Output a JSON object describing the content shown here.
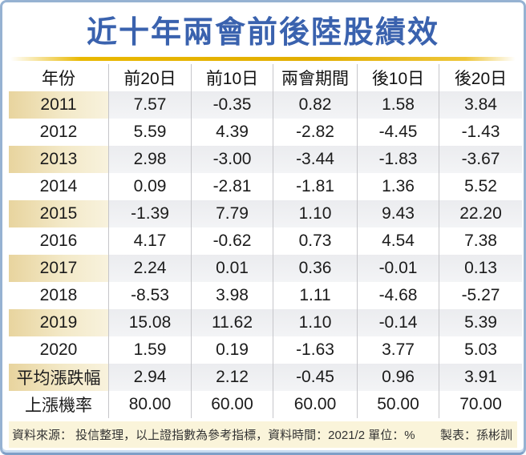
{
  "title": "近十年兩會前後陸股績效",
  "table": {
    "columns": [
      "年份",
      "前20日",
      "前10日",
      "兩會期間",
      "後10日",
      "後20日"
    ],
    "rows": [
      {
        "label": "2011",
        "values": [
          "7.57",
          "-0.35",
          "0.82",
          "1.58",
          "3.84"
        ],
        "shaded": true
      },
      {
        "label": "2012",
        "values": [
          "5.59",
          "4.39",
          "-2.82",
          "-4.45",
          "-1.43"
        ],
        "shaded": false
      },
      {
        "label": "2013",
        "values": [
          "2.98",
          "-3.00",
          "-3.44",
          "-1.83",
          "-3.67"
        ],
        "shaded": true
      },
      {
        "label": "2014",
        "values": [
          "0.09",
          "-2.81",
          "-1.81",
          "1.36",
          "5.52"
        ],
        "shaded": false
      },
      {
        "label": "2015",
        "values": [
          "-1.39",
          "7.79",
          "1.10",
          "9.43",
          "22.20"
        ],
        "shaded": true
      },
      {
        "label": "2016",
        "values": [
          "4.17",
          "-0.62",
          "0.73",
          "4.54",
          "7.38"
        ],
        "shaded": false
      },
      {
        "label": "2017",
        "values": [
          "2.24",
          "0.01",
          "0.36",
          "-0.01",
          "0.13"
        ],
        "shaded": true
      },
      {
        "label": "2018",
        "values": [
          "-8.53",
          "3.98",
          "1.11",
          "-4.68",
          "-5.27"
        ],
        "shaded": false
      },
      {
        "label": "2019",
        "values": [
          "15.08",
          "11.62",
          "1.10",
          "-0.14",
          "5.39"
        ],
        "shaded": true
      },
      {
        "label": "2020",
        "values": [
          "1.59",
          "0.19",
          "-1.63",
          "3.77",
          "5.03"
        ],
        "shaded": false
      },
      {
        "label": "平均漲跌幅",
        "values": [
          "2.94",
          "2.12",
          "-0.45",
          "0.96",
          "3.91"
        ],
        "shaded": true
      },
      {
        "label": "上漲機率",
        "values": [
          "80.00",
          "60.00",
          "60.00",
          "50.00",
          "70.00"
        ],
        "shaded": false
      }
    ]
  },
  "footer": {
    "source": "資料來源： 投信整理，以上證指數為參考指標，資料時間：2021/2 單位：%",
    "credit": "製表：孫彬訓"
  },
  "colors": {
    "title_blue": "#3a62ae",
    "gold_rule": "#e8b500",
    "year_cell_cream": "#eeddb0",
    "shaded_cell_gray": "#edeef1",
    "footer_cream": "#faf4da",
    "frame_blue": "#96b2d2"
  },
  "chart_data": {
    "type": "table",
    "title": "近十年兩會前後陸股績效",
    "columns": [
      "年份",
      "前20日",
      "前10日",
      "兩會期間",
      "後10日",
      "後20日"
    ],
    "rows": [
      [
        "2011",
        7.57,
        -0.35,
        0.82,
        1.58,
        3.84
      ],
      [
        "2012",
        5.59,
        4.39,
        -2.82,
        -4.45,
        -1.43
      ],
      [
        "2013",
        2.98,
        -3.0,
        -3.44,
        -1.83,
        -3.67
      ],
      [
        "2014",
        0.09,
        -2.81,
        -1.81,
        1.36,
        5.52
      ],
      [
        "2015",
        -1.39,
        7.79,
        1.1,
        9.43,
        22.2
      ],
      [
        "2016",
        4.17,
        -0.62,
        0.73,
        4.54,
        7.38
      ],
      [
        "2017",
        2.24,
        0.01,
        0.36,
        -0.01,
        0.13
      ],
      [
        "2018",
        -8.53,
        3.98,
        1.11,
        -4.68,
        -5.27
      ],
      [
        "2019",
        15.08,
        11.62,
        1.1,
        -0.14,
        5.39
      ],
      [
        "2020",
        1.59,
        0.19,
        -1.63,
        3.77,
        5.03
      ],
      [
        "平均漲跌幅",
        2.94,
        2.12,
        -0.45,
        0.96,
        3.91
      ],
      [
        "上漲機率",
        80.0,
        60.0,
        60.0,
        50.0,
        70.0
      ]
    ],
    "unit": "%",
    "source": "投信整理，以上證指數為參考指標",
    "data_time": "2021/2"
  }
}
